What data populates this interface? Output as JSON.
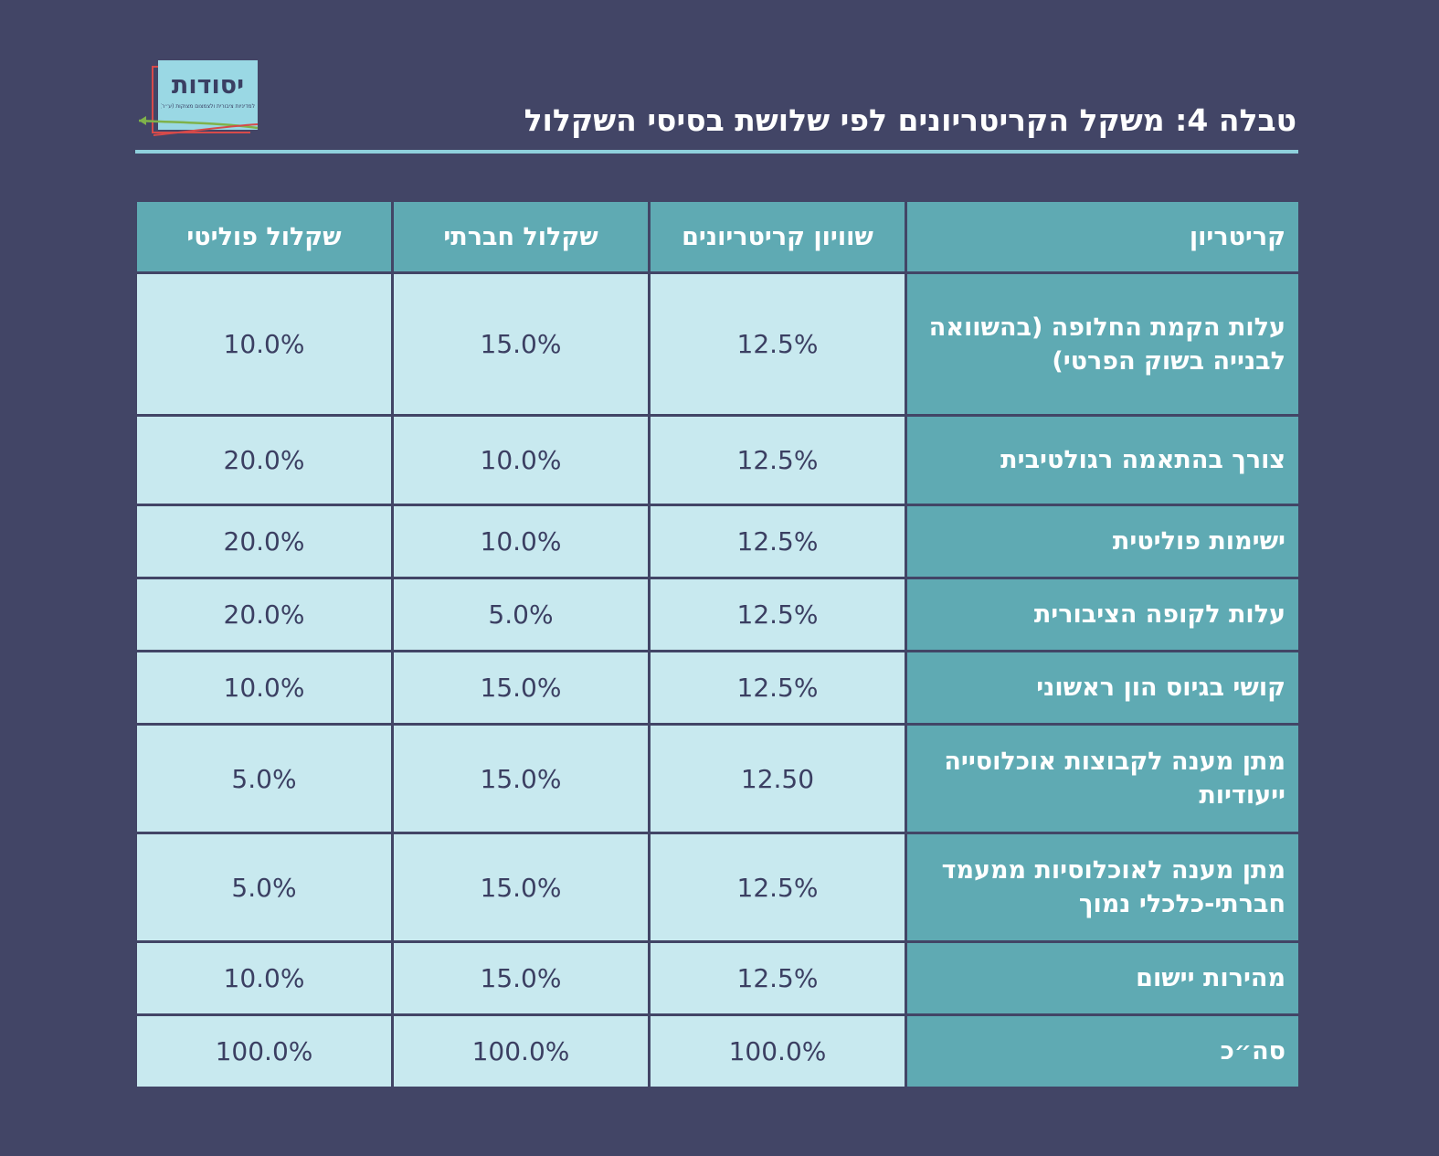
{
  "header": {
    "title": "טבלה 4: משקל הקריטריונים לפי שלושת בסיסי השקלול",
    "logo_text": "יסודות",
    "logo_subtitle": "למדיניות ציבורית ולצמצום מצוקות (ע״ר)"
  },
  "colors": {
    "background": "#424566",
    "header_cell": "#5faab3",
    "value_cell": "#c8e9ef",
    "accent_rule": "#8fd0dd"
  },
  "table": {
    "columns": [
      "קריטריון",
      "שוויון קריטריונים",
      "שקלול חברתי",
      "שקלול פוליטי"
    ],
    "rows": [
      {
        "criterion": "עלות הקמת החלופה (בהשוואה לבנייה בשוק הפרטי)",
        "equal": "12.5%",
        "social": "15.0%",
        "political": "10.0%"
      },
      {
        "criterion": "צורך בהתאמה רגולטיבית",
        "equal": "12.5%",
        "social": "10.0%",
        "political": "20.0%"
      },
      {
        "criterion": "ישימות פוליטית",
        "equal": "12.5%",
        "social": "10.0%",
        "political": "20.0%"
      },
      {
        "criterion": "עלות לקופה הציבורית",
        "equal": "12.5%",
        "social": "5.0%",
        "political": "20.0%"
      },
      {
        "criterion": "קושי בגיוס הון ראשוני",
        "equal": "12.5%",
        "social": "15.0%",
        "political": "10.0%"
      },
      {
        "criterion": "מתן מענה לקבוצות אוכלוסייה ייעודיות",
        "equal": "12.50",
        "social": "15.0%",
        "political": "5.0%"
      },
      {
        "criterion": "מתן מענה לאוכלוסיות ממעמד חברתי-כלכלי נמוך",
        "equal": "12.5%",
        "social": "15.0%",
        "political": "5.0%"
      },
      {
        "criterion": "מהירות יישום",
        "equal": "12.5%",
        "social": "15.0%",
        "political": "10.0%"
      },
      {
        "criterion": "סה״כ",
        "equal": "100.0%",
        "social": "100.0%",
        "political": "100.0%"
      }
    ]
  }
}
